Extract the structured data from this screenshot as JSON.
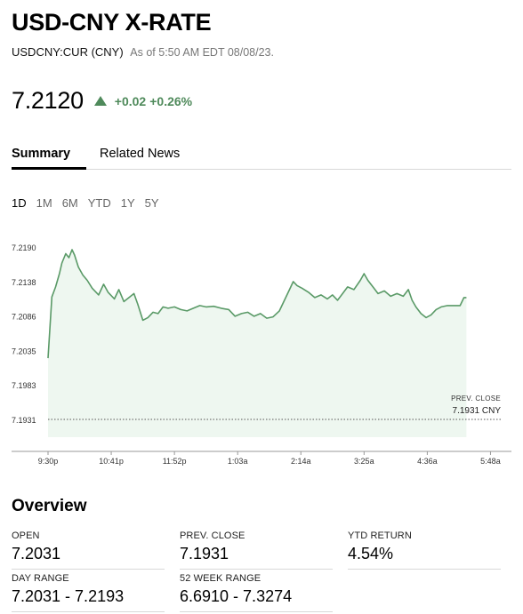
{
  "header": {
    "title": "USD-CNY X-RATE",
    "ticker": "USDCNY:CUR (CNY)",
    "as_of": "As of 5:50 AM EDT 08/08/23."
  },
  "quote": {
    "price": "7.2120",
    "change": "+0.02",
    "change_pct": "+0.26%",
    "direction": "up",
    "up_color": "#4f8a5b"
  },
  "tabs": [
    {
      "label": "Summary",
      "active": true
    },
    {
      "label": "Related News",
      "active": false
    }
  ],
  "ranges": [
    {
      "label": "1D",
      "active": true
    },
    {
      "label": "1M",
      "active": false
    },
    {
      "label": "6M",
      "active": false
    },
    {
      "label": "YTD",
      "active": false
    },
    {
      "label": "1Y",
      "active": false
    },
    {
      "label": "5Y",
      "active": false
    }
  ],
  "chart_data": {
    "type": "area",
    "x_tick_labels": [
      "9:30p",
      "10:41p",
      "11:52p",
      "1:03a",
      "2:14a",
      "3:25a",
      "4:36a",
      "5:48a"
    ],
    "y_tick_labels": [
      "7.2190",
      "7.2138",
      "7.2086",
      "7.2035",
      "7.1983",
      "7.1931"
    ],
    "ylim": [
      7.1931,
      7.219
    ],
    "xlim": [
      0,
      7.05
    ],
    "x_unit_note": "",
    "prev_close": {
      "label": "PREV. CLOSE",
      "value": "7.1931 CNY",
      "y": 7.1931
    },
    "line_color": "#5a9a67",
    "fill_color": "#eef7f0",
    "points": [
      [
        0.0,
        7.2023
      ],
      [
        0.06,
        7.2115
      ],
      [
        0.12,
        7.213
      ],
      [
        0.18,
        7.215
      ],
      [
        0.22,
        7.2166
      ],
      [
        0.28,
        7.218
      ],
      [
        0.33,
        7.2174
      ],
      [
        0.38,
        7.2186
      ],
      [
        0.42,
        7.2178
      ],
      [
        0.48,
        7.216
      ],
      [
        0.55,
        7.2148
      ],
      [
        0.62,
        7.214
      ],
      [
        0.7,
        7.2128
      ],
      [
        0.8,
        7.2118
      ],
      [
        0.88,
        7.2134
      ],
      [
        0.95,
        7.2122
      ],
      [
        1.05,
        7.2112
      ],
      [
        1.12,
        7.2126
      ],
      [
        1.2,
        7.2108
      ],
      [
        1.28,
        7.2114
      ],
      [
        1.36,
        7.212
      ],
      [
        1.42,
        7.2104
      ],
      [
        1.5,
        7.208
      ],
      [
        1.58,
        7.2084
      ],
      [
        1.66,
        7.2092
      ],
      [
        1.74,
        7.209
      ],
      [
        1.82,
        7.21
      ],
      [
        1.9,
        7.2098
      ],
      [
        2.0,
        7.21
      ],
      [
        2.1,
        7.2096
      ],
      [
        2.2,
        7.2094
      ],
      [
        2.3,
        7.2098
      ],
      [
        2.4,
        7.2102
      ],
      [
        2.5,
        7.21
      ],
      [
        2.62,
        7.2101
      ],
      [
        2.74,
        7.2098
      ],
      [
        2.86,
        7.2096
      ],
      [
        2.96,
        7.2086
      ],
      [
        3.06,
        7.209
      ],
      [
        3.16,
        7.2092
      ],
      [
        3.26,
        7.2086
      ],
      [
        3.36,
        7.209
      ],
      [
        3.46,
        7.2083
      ],
      [
        3.56,
        7.2085
      ],
      [
        3.66,
        7.2094
      ],
      [
        3.74,
        7.211
      ],
      [
        3.82,
        7.2126
      ],
      [
        3.88,
        7.2138
      ],
      [
        3.94,
        7.2132
      ],
      [
        4.02,
        7.2128
      ],
      [
        4.12,
        7.2122
      ],
      [
        4.22,
        7.2114
      ],
      [
        4.32,
        7.2118
      ],
      [
        4.42,
        7.2112
      ],
      [
        4.5,
        7.2118
      ],
      [
        4.58,
        7.211
      ],
      [
        4.66,
        7.212
      ],
      [
        4.74,
        7.213
      ],
      [
        4.84,
        7.2126
      ],
      [
        4.94,
        7.214
      ],
      [
        5.0,
        7.215
      ],
      [
        5.06,
        7.214
      ],
      [
        5.14,
        7.213
      ],
      [
        5.22,
        7.212
      ],
      [
        5.32,
        7.2124
      ],
      [
        5.42,
        7.2116
      ],
      [
        5.52,
        7.212
      ],
      [
        5.62,
        7.2116
      ],
      [
        5.7,
        7.2126
      ],
      [
        5.76,
        7.211
      ],
      [
        5.82,
        7.21
      ],
      [
        5.9,
        7.209
      ],
      [
        5.98,
        7.2084
      ],
      [
        6.06,
        7.2088
      ],
      [
        6.14,
        7.2096
      ],
      [
        6.22,
        7.21
      ],
      [
        6.32,
        7.2102
      ],
      [
        6.42,
        7.2102
      ],
      [
        6.52,
        7.2102
      ],
      [
        6.58,
        7.2114
      ],
      [
        6.62,
        7.2114
      ]
    ]
  },
  "overview": {
    "title": "Overview",
    "stats": [
      {
        "label": "OPEN",
        "value": "7.2031"
      },
      {
        "label": "PREV. CLOSE",
        "value": "7.1931"
      },
      {
        "label": "YTD RETURN",
        "value": "4.54%"
      },
      {
        "label": "DAY RANGE",
        "value": "7.2031 - 7.2193"
      },
      {
        "label": "52 WEEK RANGE",
        "value": "6.6910 - 7.3274"
      }
    ]
  }
}
